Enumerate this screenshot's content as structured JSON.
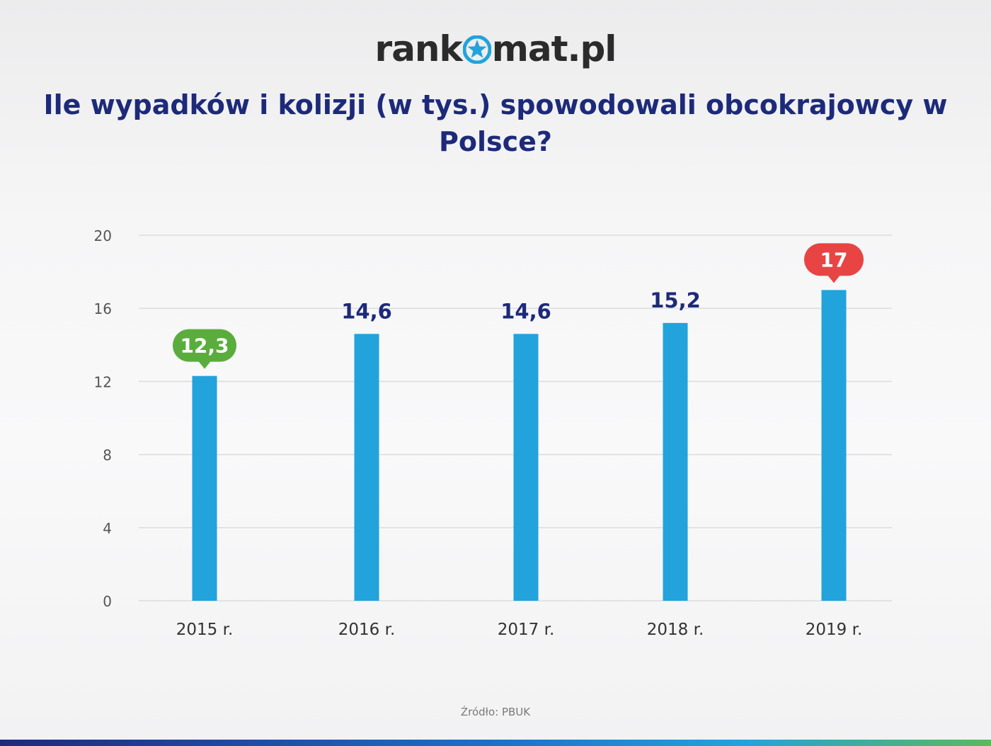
{
  "brand": {
    "part1": "rank",
    "part2": "mat.pl",
    "star_color": "#22a3dc"
  },
  "source": "Źródło: PBUK",
  "colors": {
    "bar": "#22a3dc",
    "value_text": "#1d2a7a",
    "badge_min": "#5aad3c",
    "badge_max": "#e84444"
  },
  "chart_data": {
    "type": "bar",
    "title": "Ile wypadków i kolizji (w tys.) spowodowali obcokrajowcy w Polsce?",
    "categories": [
      "2015 r.",
      "2016 r.",
      "2017 r.",
      "2018 r.",
      "2019 r."
    ],
    "values": [
      12.3,
      14.6,
      14.6,
      15.2,
      17
    ],
    "value_labels": [
      "12,3",
      "14,6",
      "14,6",
      "15,2",
      "17"
    ],
    "yticks": [
      0,
      4,
      8,
      12,
      16,
      20
    ],
    "ylim": [
      0,
      20
    ],
    "xlabel": "",
    "ylabel": "",
    "grid": true,
    "highlight": {
      "min_index": 0,
      "max_index": 4
    }
  }
}
